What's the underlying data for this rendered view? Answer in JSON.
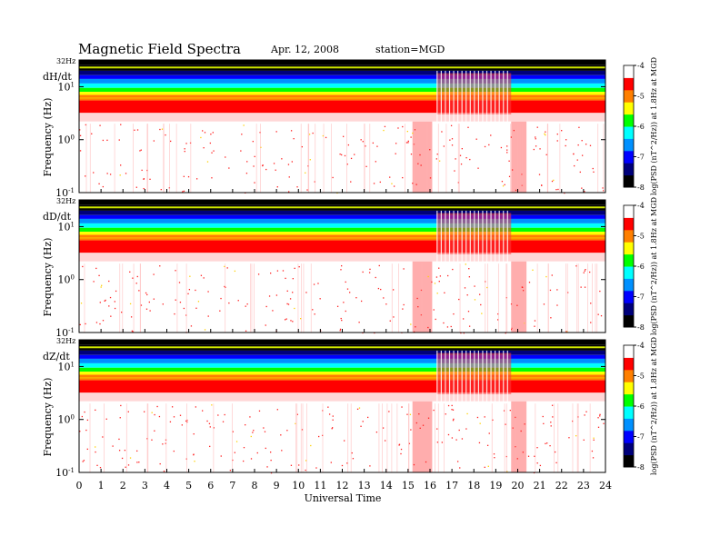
{
  "header": {
    "title": "Magnetic  Field  Spectra",
    "date": "Apr. 12, 2008",
    "station": "station=MGD"
  },
  "chart_data": {
    "type": "heatmap",
    "xlabel": "Universal Time",
    "xlim": [
      0,
      24
    ],
    "x_ticks": [
      "0",
      "1",
      "2",
      "3",
      "4",
      "5",
      "6",
      "7",
      "8",
      "9",
      "10",
      "11",
      "12",
      "13",
      "14",
      "15",
      "16",
      "17",
      "18",
      "19",
      "20",
      "21",
      "22",
      "23",
      "24"
    ],
    "ylabel": "Frequency  (Hz)",
    "y_scale": "log",
    "ylim": [
      0.1,
      32
    ],
    "colorscale": [
      "#000000",
      "#00007a",
      "#0000ff",
      "#0090ff",
      "#00ffff",
      "#00ff00",
      "#ffff00",
      "#ff7f00",
      "#ff0000",
      "#ffffff"
    ],
    "colorbar_ticks": [
      "-4",
      "-5",
      "-6",
      "-7",
      "-8"
    ],
    "colorbar_range": [
      -8,
      -4
    ],
    "panels": [
      {
        "label": "dH/dt",
        "top_tick": "32Hz",
        "y_ticks": [
          {
            "base": "10",
            "exp": "1"
          },
          {
            "base": "10",
            "exp": "0"
          },
          {
            "base": "10",
            "exp": "-1"
          }
        ],
        "colorbar_label": "log(PSD (nT^2/Hz)) at 1.8Hz at MGD",
        "disturbed_intervals_ut": [
          [
            15.2,
            16.1
          ],
          [
            16.3,
            19.7
          ],
          [
            19.7,
            20.4
          ]
        ]
      },
      {
        "label": "dD/dt",
        "top_tick": "32Hz",
        "y_ticks": [
          {
            "base": "10",
            "exp": "1"
          },
          {
            "base": "10",
            "exp": "0"
          },
          {
            "base": "10",
            "exp": "-1"
          }
        ],
        "colorbar_label": "log(PSD (nT^2/Hz)) at 1.8Hz at MGD",
        "disturbed_intervals_ut": [
          [
            15.2,
            16.1
          ],
          [
            16.3,
            19.7
          ],
          [
            19.7,
            20.4
          ]
        ]
      },
      {
        "label": "dZ/dt",
        "top_tick": "32Hz",
        "y_ticks": [
          {
            "base": "10",
            "exp": "1"
          },
          {
            "base": "10",
            "exp": "0"
          },
          {
            "base": "10",
            "exp": "-1"
          }
        ],
        "colorbar_label": "log(PSD (nT^2/Hz)) at 1.8Hz at MGD",
        "disturbed_intervals_ut": [
          [
            15.2,
            16.1
          ],
          [
            16.3,
            19.7
          ],
          [
            19.7,
            20.4
          ]
        ]
      }
    ]
  }
}
